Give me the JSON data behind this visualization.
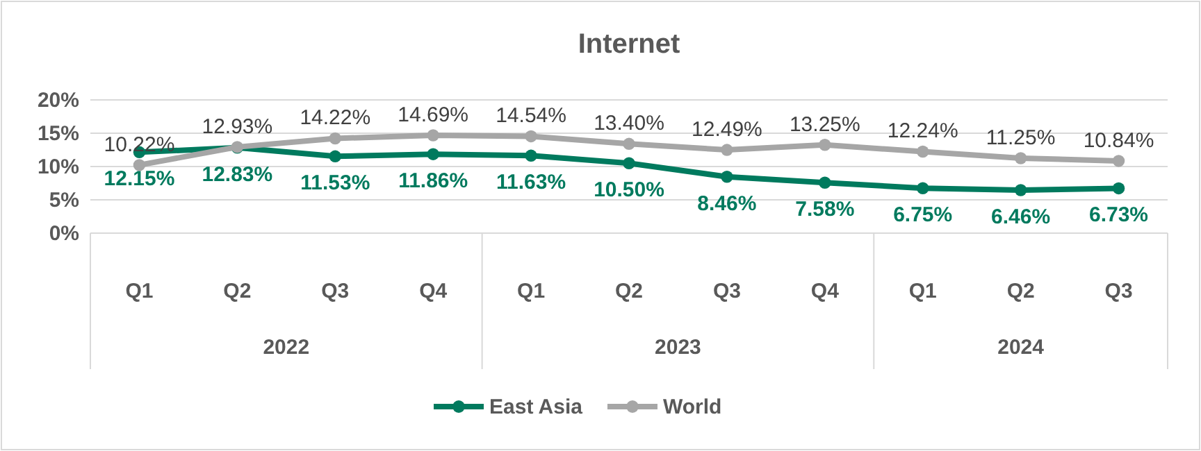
{
  "chart_data": {
    "type": "line",
    "title": "Internet",
    "categories": [
      "Q1",
      "Q2",
      "Q3",
      "Q4",
      "Q1",
      "Q2",
      "Q3",
      "Q4",
      "Q1",
      "Q2",
      "Q3"
    ],
    "annotations": [
      "2022",
      "2023",
      "2024"
    ],
    "series": [
      {
        "name": "East Asia",
        "color": "#007a5e",
        "values": [
          12.15,
          12.83,
          11.53,
          11.86,
          11.63,
          10.5,
          8.46,
          7.58,
          6.75,
          6.46,
          6.73
        ],
        "value_labels": [
          "12.15%",
          "12.83%",
          "11.53%",
          "11.86%",
          "11.63%",
          "10.50%",
          "8.46%",
          "7.58%",
          "6.75%",
          "6.46%",
          "6.73%"
        ]
      },
      {
        "name": "World",
        "color": "#a6a6a6",
        "values": [
          10.22,
          12.93,
          14.22,
          14.69,
          14.54,
          13.4,
          12.49,
          13.25,
          12.24,
          11.25,
          10.84
        ],
        "value_labels": [
          "10.22%",
          "12.93%",
          "14.22%",
          "14.69%",
          "14.54%",
          "13.40%",
          "12.49%",
          "13.25%",
          "12.24%",
          "11.25%",
          "10.84%"
        ]
      }
    ],
    "ylim": [
      0,
      20
    ],
    "yticks": [
      {
        "value": 0,
        "label": "0%"
      },
      {
        "value": 5,
        "label": "5%"
      },
      {
        "value": 10,
        "label": "10%"
      },
      {
        "value": 15,
        "label": "15%"
      },
      {
        "value": 20,
        "label": "20%"
      }
    ],
    "grid": "y",
    "legend": "bottom",
    "marker": "circle",
    "line_style": "solid"
  }
}
